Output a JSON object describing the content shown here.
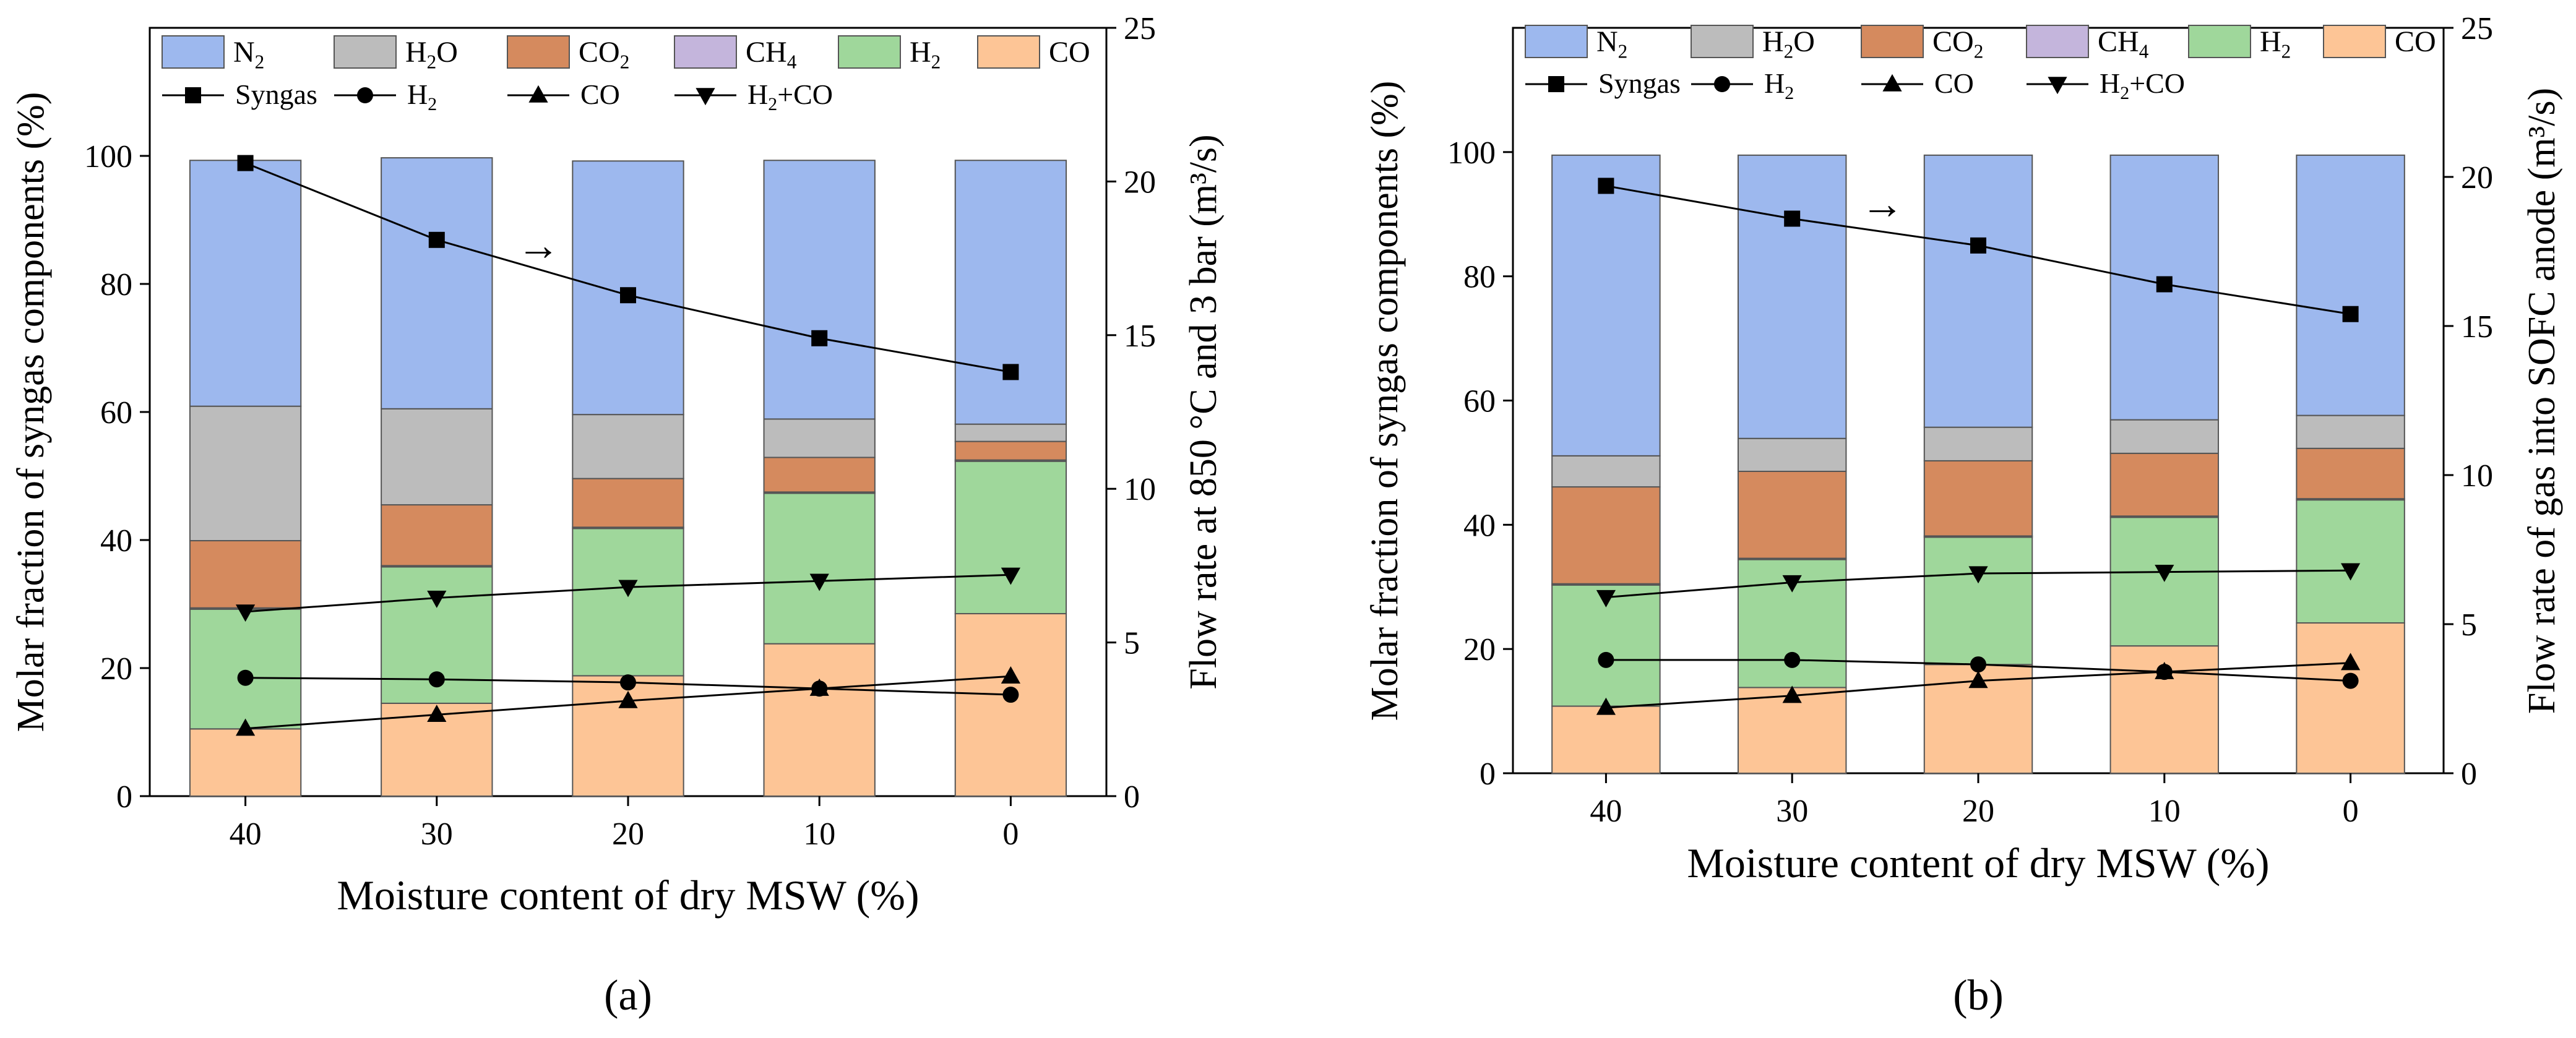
{
  "colors": {
    "N2": "#9db8ee",
    "H2O": "#bcbcbc",
    "CO2": "#d58a5e",
    "CH4": "#c4b5dc",
    "H2": "#9fd79b",
    "CO": "#fdc596",
    "line": "#000000"
  },
  "legend_bar_keys": [
    "N2",
    "H2O",
    "CO2",
    "CH4",
    "H2",
    "CO"
  ],
  "legend_line_keys": [
    "Syngas",
    "H2",
    "CO",
    "H2+CO"
  ],
  "legend_line_markers": [
    "square",
    "circle",
    "triangle",
    "triangle-down"
  ],
  "chart_data": [
    {
      "type": "bar",
      "panel_label": "(a)",
      "xlabel": "Moisture content of dry MSW (%)",
      "ylabel": "Molar fraction of syngas components (%)",
      "y2label": "Flow rate at 850 °C and 3 bar (m³/s)",
      "categories": [
        "40",
        "30",
        "20",
        "10",
        "0"
      ],
      "ylim": [
        0,
        120
      ],
      "yticks": [
        0,
        20,
        40,
        60,
        80,
        100
      ],
      "y2lim": [
        0,
        25
      ],
      "y2ticks": [
        0,
        5,
        10,
        15,
        20,
        25
      ],
      "series": [
        {
          "key": "CO",
          "name": "CO",
          "values": [
            10.5,
            14.5,
            18.8,
            23.8,
            28.5
          ]
        },
        {
          "key": "H2",
          "name": "H₂",
          "values": [
            18.7,
            21.3,
            23.0,
            23.5,
            23.8
          ]
        },
        {
          "key": "CH4",
          "name": "CH₄",
          "values": [
            0.2,
            0.2,
            0.2,
            0.2,
            0.2
          ]
        },
        {
          "key": "CO2",
          "name": "CO₂",
          "values": [
            10.5,
            9.5,
            7.6,
            5.4,
            2.9
          ]
        },
        {
          "key": "H2O",
          "name": "H₂O",
          "values": [
            21.0,
            15.0,
            10.0,
            6.0,
            2.7
          ]
        },
        {
          "key": "N2",
          "name": "N₂",
          "values": [
            38.4,
            39.2,
            39.6,
            40.4,
            41.2
          ]
        }
      ],
      "lines": [
        {
          "key": "Syngas",
          "name": "Syngas",
          "marker": "square",
          "values": [
            20.6,
            18.1,
            16.3,
            14.9,
            13.8
          ]
        },
        {
          "key": "H2",
          "name": "H₂",
          "marker": "circle",
          "values": [
            3.85,
            3.8,
            3.7,
            3.5,
            3.3
          ]
        },
        {
          "key": "CO",
          "name": "CO",
          "marker": "triangle",
          "values": [
            2.2,
            2.65,
            3.1,
            3.5,
            3.9
          ]
        },
        {
          "key": "H2+CO",
          "name": "H₂+CO",
          "marker": "triangle-down",
          "values": [
            6.0,
            6.45,
            6.8,
            7.0,
            7.2
          ]
        }
      ],
      "annotation": "→"
    },
    {
      "type": "bar",
      "panel_label": "(b)",
      "xlabel": "Moisture content of dry MSW (%)",
      "ylabel": "Molar fraction of syngas components (%)",
      "y2label": "Flow rate of gas into SOFC anode (m³/s)",
      "categories": [
        "40",
        "30",
        "20",
        "10",
        "0"
      ],
      "ylim": [
        0,
        120
      ],
      "yticks": [
        0,
        20,
        40,
        60,
        80,
        100
      ],
      "y2lim": [
        0,
        25
      ],
      "y2ticks": [
        0,
        5,
        10,
        15,
        20,
        25
      ],
      "series": [
        {
          "key": "CO",
          "name": "CO",
          "values": [
            10.8,
            13.8,
            17.5,
            20.5,
            24.2
          ]
        },
        {
          "key": "H2",
          "name": "H₂",
          "values": [
            19.5,
            20.6,
            20.5,
            20.7,
            19.8
          ]
        },
        {
          "key": "CH4",
          "name": "CH₄",
          "values": [
            0.2,
            0.2,
            0.2,
            0.2,
            0.2
          ]
        },
        {
          "key": "CO2",
          "name": "CO₂",
          "values": [
            15.6,
            14.0,
            12.1,
            10.1,
            8.1
          ]
        },
        {
          "key": "H2O",
          "name": "H₂O",
          "values": [
            5.0,
            5.3,
            5.4,
            5.4,
            5.3
          ]
        },
        {
          "key": "N2",
          "name": "N₂",
          "values": [
            48.4,
            45.6,
            43.8,
            42.6,
            41.9
          ]
        }
      ],
      "lines": [
        {
          "key": "Syngas",
          "name": "Syngas",
          "marker": "square",
          "values": [
            19.7,
            18.6,
            17.7,
            16.4,
            15.4
          ]
        },
        {
          "key": "H2",
          "name": "H₂",
          "marker": "circle",
          "values": [
            3.8,
            3.8,
            3.65,
            3.4,
            3.1
          ]
        },
        {
          "key": "CO",
          "name": "CO",
          "marker": "triangle",
          "values": [
            2.2,
            2.6,
            3.1,
            3.4,
            3.7
          ]
        },
        {
          "key": "H2+CO",
          "name": "H₂+CO",
          "marker": "triangle-down",
          "values": [
            5.9,
            6.4,
            6.7,
            6.75,
            6.8
          ]
        }
      ],
      "annotation": "→"
    }
  ]
}
